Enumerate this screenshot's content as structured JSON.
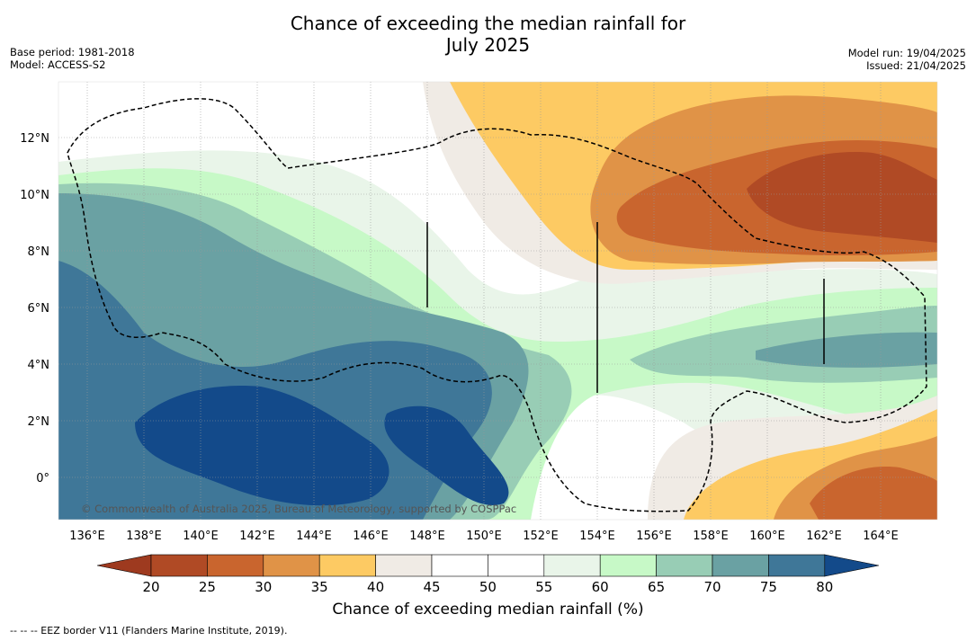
{
  "title_line1": "Chance of exceeding the median rainfall for",
  "title_line2": "July 2025",
  "base_period": "Base period: 1981-2018",
  "model": "Model: ACCESS-S2",
  "model_run": "Model run: 19/04/2025",
  "issued": "Issued: 21/04/2025",
  "copyright": "© Commonwealth of Australia 2025, Bureau of Meteorology, supported by COSPPac",
  "lon_labels": [
    "136°E",
    "138°E",
    "140°E",
    "142°E",
    "144°E",
    "146°E",
    "148°E",
    "150°E",
    "152°E",
    "154°E",
    "156°E",
    "158°E",
    "160°E",
    "162°E",
    "164°E"
  ],
  "lat_labels": [
    "12°N",
    "10°N",
    "8°N",
    "6°N",
    "4°N",
    "2°N",
    "0°"
  ],
  "colorbar": {
    "ticks": [
      "20",
      "25",
      "30",
      "35",
      "40",
      "45",
      "50",
      "55",
      "60",
      "65",
      "70",
      "75",
      "80"
    ],
    "colors": [
      "#b04a25",
      "#c9652e",
      "#e09347",
      "#fdca63",
      "#f0ebe5",
      "#ffffff",
      "#ffffff",
      "#e9f5e9",
      "#c7f9c7",
      "#98cdb5",
      "#6aa1a3",
      "#3f7798",
      "#134a8a"
    ],
    "under_color": "#9e3a1f",
    "over_color": "#134a8a",
    "label": "Chance of exceeding median rainfall (%)"
  },
  "footnote": "--  --  -- EEZ border V11 (Flanders Marine Institute, 2019)."
}
